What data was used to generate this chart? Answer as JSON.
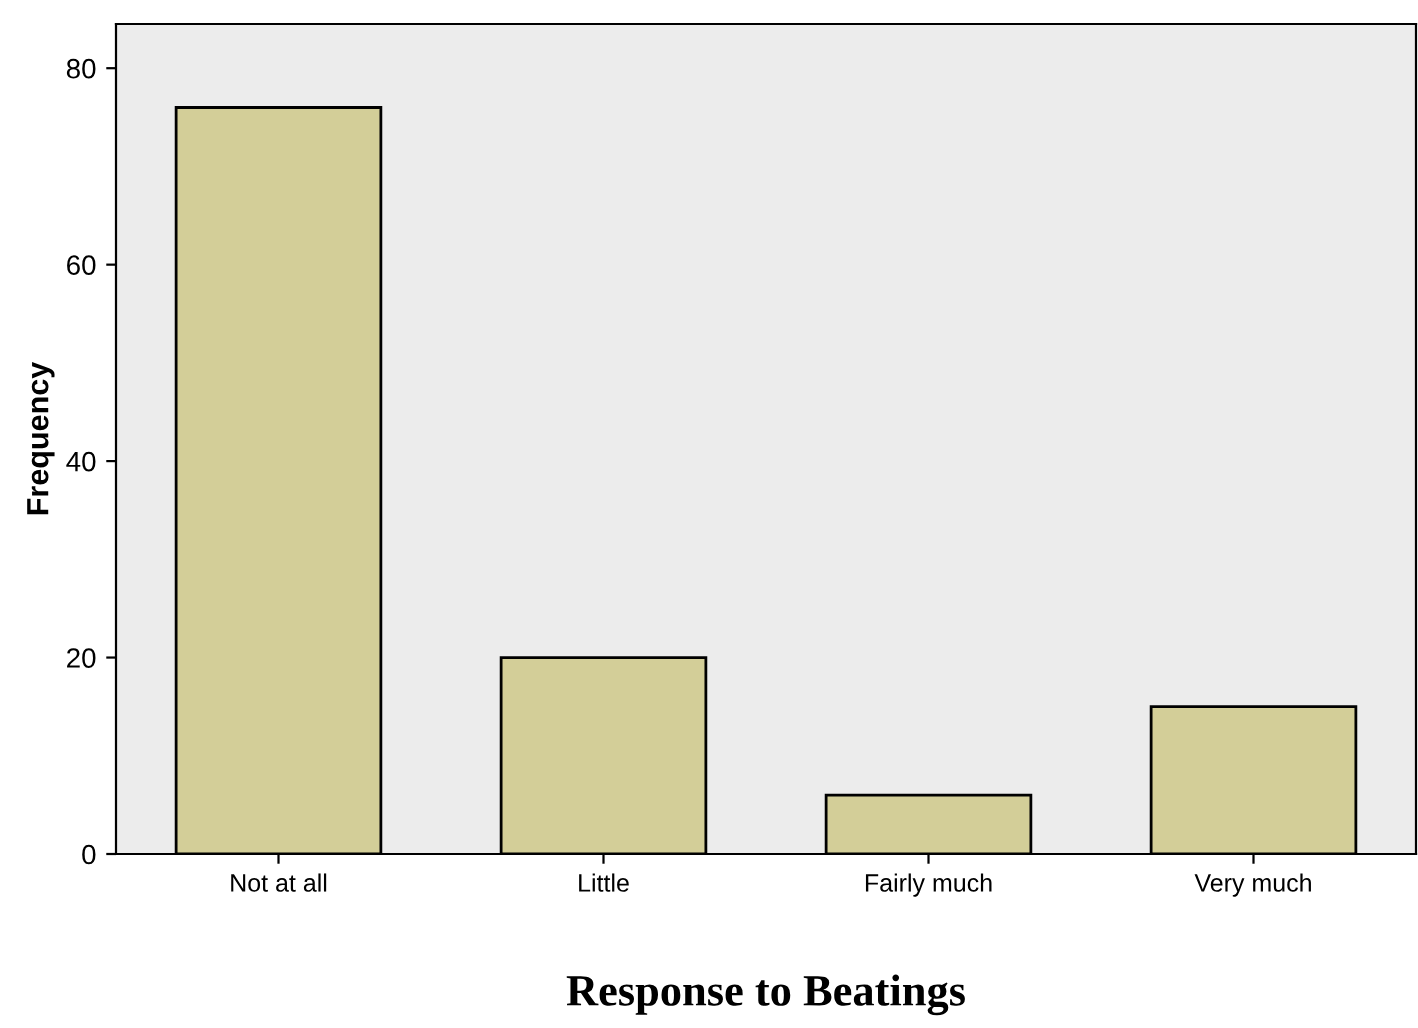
{
  "chart_data": {
    "type": "bar",
    "xlabel": "Response to Beatings",
    "ylabel": "Frequency",
    "categories": [
      "Not at all",
      "Little",
      "Fairly much",
      "Very much"
    ],
    "values": [
      76,
      20,
      6,
      15
    ],
    "color": "#d3ce98",
    "ylim": [
      0,
      84.5
    ],
    "yticks": [
      0,
      20,
      40,
      60,
      80
    ],
    "grid": false
  }
}
